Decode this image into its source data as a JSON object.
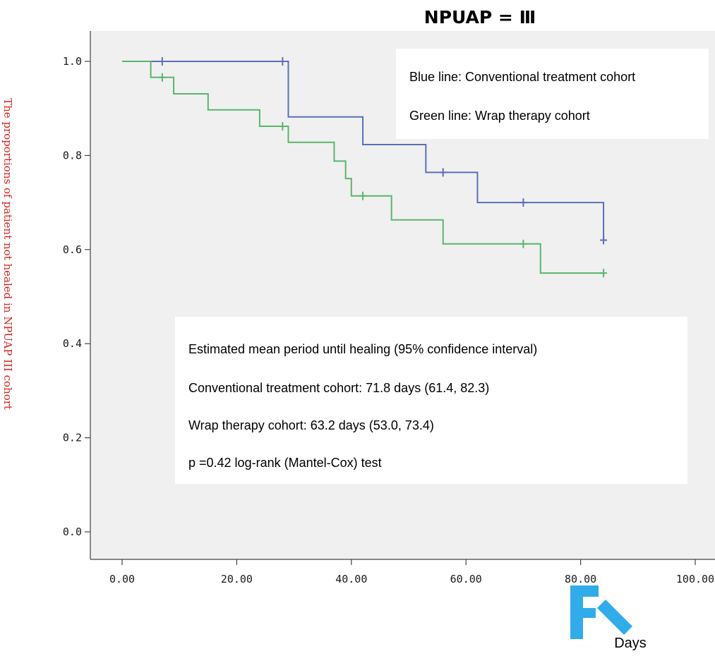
{
  "chart_data": {
    "type": "line",
    "subtype": "kaplan-meier-step",
    "title": "NPUAP = Ⅲ",
    "xlabel": "Days",
    "ylabel": "The proportions of patient not healed in NPUAP III cohort",
    "xlim": [
      0,
      100
    ],
    "ylim": [
      0,
      1.0
    ],
    "xticks": [
      "0.00",
      "20.00",
      "40.00",
      "60.00",
      "80.00",
      "100.00"
    ],
    "yticks": [
      "0.0",
      "0.2",
      "0.4",
      "0.6",
      "0.8",
      "1.0"
    ],
    "grid": false,
    "plot_background": "#f0f0f0",
    "series": [
      {
        "key": "conventional",
        "color": "#5b6fb6",
        "steps": [
          [
            0,
            1.0
          ],
          [
            29,
            0.882
          ],
          [
            42,
            0.823
          ],
          [
            53,
            0.764
          ],
          [
            62,
            0.7
          ],
          [
            84,
            0.62
          ]
        ],
        "end_x": 84,
        "censored": [
          [
            7,
            1.0
          ],
          [
            28,
            1.0
          ],
          [
            56,
            0.764
          ],
          [
            70,
            0.7
          ],
          [
            84,
            0.62
          ]
        ]
      },
      {
        "key": "wrap",
        "color": "#5ab56c",
        "steps": [
          [
            0,
            1.0
          ],
          [
            5,
            0.966
          ],
          [
            9,
            0.931
          ],
          [
            15,
            0.897
          ],
          [
            24,
            0.862
          ],
          [
            29,
            0.828
          ],
          [
            37,
            0.788
          ],
          [
            39,
            0.751
          ],
          [
            40,
            0.714
          ],
          [
            47,
            0.663
          ],
          [
            56,
            0.612
          ],
          [
            73,
            0.55
          ]
        ],
        "end_x": 84,
        "censored": [
          [
            7,
            0.966
          ],
          [
            28,
            0.862
          ],
          [
            42,
            0.714
          ],
          [
            70,
            0.612
          ],
          [
            84,
            0.55
          ]
        ]
      }
    ],
    "legend_box": {
      "lines": [
        "Blue line: Conventional treatment cohort",
        "Green line: Wrap therapy cohort"
      ]
    },
    "annotation_box": {
      "lines": [
        "Estimated mean period until healing (95% confidence interval)",
        "Conventional treatment cohort: 71.8 days (61.4, 82.3)",
        "Wrap therapy cohort: 63.2 days (53.0, 73.4)",
        "p =0.42 log-rank (Mantel-Cox) test"
      ]
    }
  },
  "watermark_color": "#1aa3e8"
}
